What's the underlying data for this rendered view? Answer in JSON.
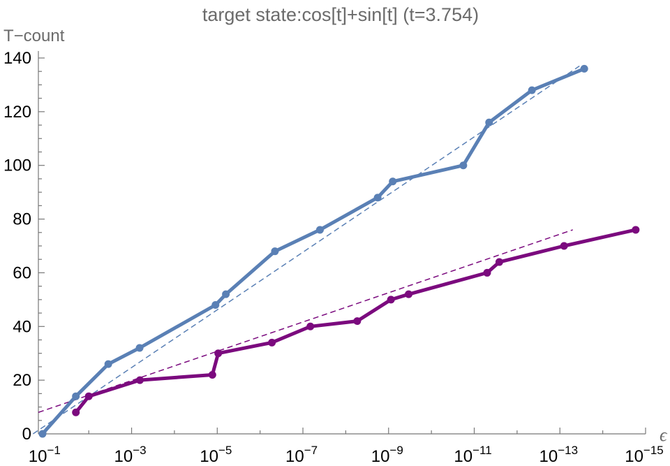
{
  "chart_data": {
    "type": "line",
    "title": "target state:cos[t]+sin[t] (t=3.754)",
    "xlabel": "ϵ",
    "ylabel": "T−count",
    "x_scale": "log",
    "x_reversed": true,
    "xlim": [
      0.15,
      1e-15
    ],
    "ylim": [
      0,
      140
    ],
    "y_ticks": [
      0,
      20,
      40,
      60,
      80,
      100,
      120,
      140
    ],
    "x_ticks": [
      {
        "value": 0.1,
        "base": "10",
        "exp": "−1"
      },
      {
        "value": 0.001,
        "base": "10",
        "exp": "−3"
      },
      {
        "value": 1e-05,
        "base": "10",
        "exp": "−5"
      },
      {
        "value": 1e-07,
        "base": "10",
        "exp": "−7"
      },
      {
        "value": 1e-09,
        "base": "10",
        "exp": "−9"
      },
      {
        "value": 1e-11,
        "base": "10",
        "exp": "−11"
      },
      {
        "value": 1e-13,
        "base": "10",
        "exp": "−13"
      },
      {
        "value": 1e-15,
        "base": "10",
        "exp": "−15"
      }
    ],
    "grid": false,
    "legend": "none",
    "series": [
      {
        "color": "#5a80b5",
        "points": [
          [
            0.12,
            0
          ],
          [
            0.02,
            14
          ],
          [
            0.0035,
            26
          ],
          [
            0.00065,
            32
          ],
          [
            1.1e-05,
            48
          ],
          [
            6.3e-06,
            52
          ],
          [
            4.5e-07,
            68
          ],
          [
            4e-08,
            76
          ],
          [
            1.8e-09,
            88
          ],
          [
            8e-10,
            94
          ],
          [
            1.8e-11,
            100
          ],
          [
            4.5e-12,
            116
          ],
          [
            4.5e-13,
            128
          ],
          [
            2.7e-14,
            136
          ]
        ],
        "fit": [
          [
            0.2,
            0
          ],
          [
            3.5e-14,
            137
          ]
        ]
      },
      {
        "color": "#7b0a7e",
        "points": [
          [
            0.02,
            8
          ],
          [
            0.01,
            14
          ],
          [
            0.00064,
            20
          ],
          [
            1.3e-05,
            22
          ],
          [
            9.5e-06,
            30
          ],
          [
            5.3e-07,
            34
          ],
          [
            6.7e-08,
            40
          ],
          [
            5.4e-09,
            42
          ],
          [
            8.8e-10,
            50
          ],
          [
            3.4e-10,
            52
          ],
          [
            5e-12,
            60
          ],
          [
            2.6e-12,
            64
          ],
          [
            8e-14,
            70
          ],
          [
            1.7e-15,
            76
          ]
        ],
        "fit": [
          [
            0.15,
            8
          ],
          [
            5e-14,
            76
          ]
        ]
      }
    ]
  }
}
